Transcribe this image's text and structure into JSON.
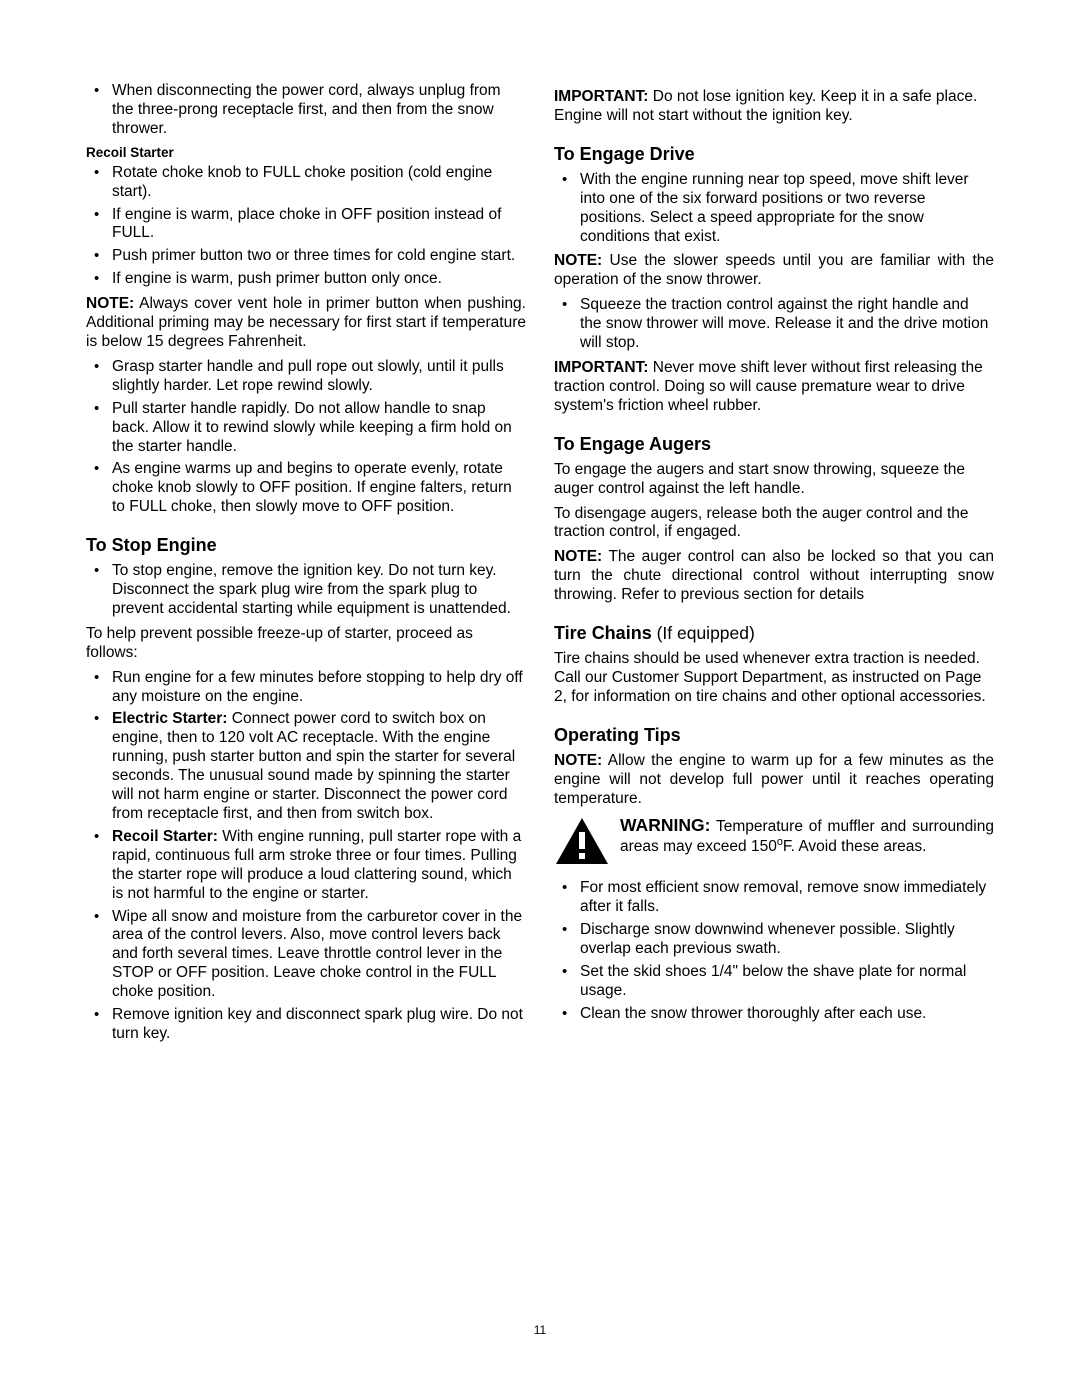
{
  "page_number": "11",
  "left_column": {
    "intro_bullets": [
      "When disconnecting the power cord, always unplug from the three-prong receptacle first, and then from the snow thrower."
    ],
    "recoil_starter_heading": "Recoil Starter",
    "recoil_bullets_a": [
      "Rotate choke knob to FULL choke position (cold engine start).",
      "If engine is warm, place choke in OFF position instead of FULL.",
      "Push primer button two or three times for cold engine start.",
      "If engine is warm, push primer button only once."
    ],
    "note1_label": "NOTE:",
    "note1_body": " Always cover vent hole in primer button when pushing. Additional priming may be necessary for first start if temperature is below 15 degrees Fahrenheit.",
    "recoil_bullets_b": [
      "Grasp starter handle and pull rope out slowly, until it pulls slightly harder. Let rope rewind slowly.",
      "Pull starter handle rapidly. Do not allow handle to snap back. Allow it to rewind slowly while keeping a firm hold on the starter handle.",
      "As engine warms up and begins to operate evenly, rotate choke knob slowly to OFF position. If engine falters, return to FULL choke, then slowly move to OFF position."
    ],
    "stop_heading": "To Stop Engine",
    "stop_bullets_a": [
      "To stop engine, remove the ignition key. Do not turn key. Disconnect the spark plug wire from the spark plug to prevent accidental starting while equipment is unattended."
    ],
    "stop_para": "To help prevent possible freeze-up of starter, proceed as follows:",
    "stop_bullets_b": [
      {
        "lead": "",
        "body": "Run engine for a few minutes before stopping to help dry off any moisture on the engine."
      },
      {
        "lead": "Electric Starter:",
        "body": " Connect power cord to switch box on engine, then to 120 volt AC receptacle. With the engine running, push starter button and spin the starter for several seconds. The unusual sound made by spinning the starter will not harm engine or starter. Disconnect the power cord from receptacle first, and then from switch box."
      },
      {
        "lead": "Recoil Starter:",
        "body": " With engine running, pull starter rope with a rapid, continuous full arm stroke three or four times. Pulling the starter rope will produce a loud clattering sound, which is not harmful to the engine or starter."
      },
      {
        "lead": "",
        "body": "Wipe all snow and moisture from the carburetor cover in the area of the control levers. Also, move control levers back and forth several times. Leave throttle control lever in the STOP or OFF position. Leave choke control in the FULL choke position."
      },
      {
        "lead": "",
        "body": "Remove ignition key and disconnect spark plug wire. Do not turn key."
      }
    ]
  },
  "right_column": {
    "important1_label": "IMPORTANT:",
    "important1_body": " Do not lose ignition key. Keep it in a safe place. Engine will not start without the ignition key.",
    "drive_heading": "To Engage Drive",
    "drive_bullets_a": [
      "With the engine running near top speed, move shift lever into one of the six forward positions or two reverse positions. Select a speed appropriate for the snow conditions that exist."
    ],
    "note2_label": "NOTE:",
    "note2_body": " Use the slower speeds until you are familiar with the operation of the snow thrower.",
    "drive_bullets_b": [
      "Squeeze the traction control against the right handle and the snow thrower will move. Release it and the drive motion will stop."
    ],
    "important2_label": "IMPORTANT:",
    "important2_body": " Never move shift lever without first releasing the traction control. Doing so will  cause premature wear to drive system's friction wheel rubber.",
    "augers_heading": "To Engage Augers",
    "augers_p1": "To engage the augers and start snow throwing, squeeze the auger control against the left handle.",
    "augers_p2": "To disengage augers, release both the auger control and the traction control, if engaged.",
    "note3_label": "NOTE:",
    "note3_body": " The auger control can also be locked so that you can turn the chute directional control without interrupting snow throwing. Refer to previous section for details",
    "tire_heading": "Tire Chains",
    "tire_paren": " (If equipped)",
    "tire_body": "Tire chains should be used whenever extra traction is needed. Call our Customer Support Department, as instructed on Page 2, for information on tire chains and other optional accessories.",
    "tips_heading": "Operating Tips",
    "note4_label": "NOTE:",
    "note4_body": " Allow the engine to warm up for a few minutes as the engine will not develop full power until it reaches operating temperature.",
    "warning_label": "WARNING:",
    "warning_body_a": " Temperature of muffler and surrounding areas may exceed 150",
    "warning_body_b": "F. Avoid these areas.",
    "tips_bullets": [
      "For most efficient snow removal, remove snow immediately after it falls.",
      "Discharge snow downwind whenever possible. Slightly overlap each previous swath.",
      "Set the skid shoes 1/4\" below the shave plate for normal usage.",
      "Clean the snow thrower thoroughly after each use."
    ]
  }
}
